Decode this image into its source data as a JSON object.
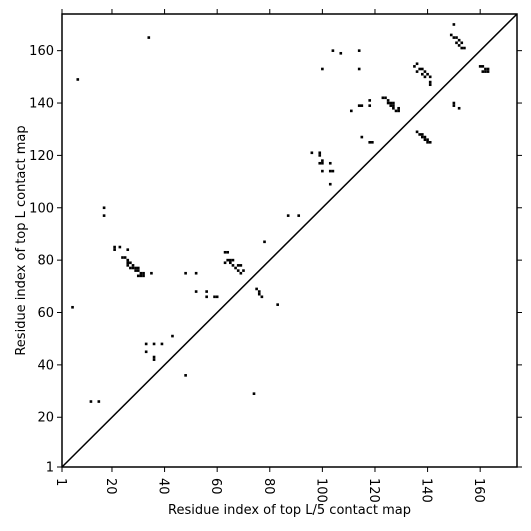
{
  "chart_data": {
    "type": "scatter",
    "title": "",
    "xlabel": "Residue index of top L/5 contact map",
    "ylabel": "Residue index of top L contact map",
    "xlim": [
      1,
      174
    ],
    "ylim": [
      1,
      174
    ],
    "xticks": [
      1,
      20,
      40,
      60,
      80,
      100,
      120,
      140,
      160
    ],
    "yticks": [
      1,
      20,
      40,
      60,
      80,
      100,
      120,
      140,
      160
    ],
    "grid": false,
    "legend": "none",
    "marker": "filled square",
    "marker_color": "#000000",
    "diagonal": {
      "from": [
        1,
        1
      ],
      "to": [
        174,
        174
      ],
      "color": "#000000"
    },
    "points": [
      [
        7,
        149
      ],
      [
        5,
        62
      ],
      [
        12,
        26
      ],
      [
        15,
        26
      ],
      [
        17,
        100
      ],
      [
        17,
        97
      ],
      [
        21,
        85
      ],
      [
        21,
        84
      ],
      [
        23,
        85
      ],
      [
        26,
        84
      ],
      [
        24,
        81
      ],
      [
        25,
        81
      ],
      [
        26,
        80
      ],
      [
        26,
        79
      ],
      [
        27,
        79
      ],
      [
        28,
        78
      ],
      [
        29,
        77
      ],
      [
        30,
        77
      ],
      [
        30,
        76
      ],
      [
        31,
        75
      ],
      [
        32,
        74
      ],
      [
        32,
        75
      ],
      [
        35,
        75
      ],
      [
        26,
        78
      ],
      [
        27,
        77
      ],
      [
        28,
        77
      ],
      [
        29,
        76
      ],
      [
        30,
        74
      ],
      [
        31,
        74
      ],
      [
        34,
        165
      ],
      [
        33,
        45
      ],
      [
        33,
        48
      ],
      [
        36,
        48
      ],
      [
        36,
        43
      ],
      [
        36,
        42
      ],
      [
        39,
        48
      ],
      [
        43,
        51
      ],
      [
        48,
        75
      ],
      [
        48,
        36
      ],
      [
        52,
        75
      ],
      [
        52,
        68
      ],
      [
        56,
        68
      ],
      [
        56,
        66
      ],
      [
        59,
        66
      ],
      [
        60,
        66
      ],
      [
        63,
        83
      ],
      [
        64,
        83
      ],
      [
        63,
        79
      ],
      [
        64,
        80
      ],
      [
        65,
        80
      ],
      [
        66,
        80
      ],
      [
        65,
        79
      ],
      [
        66,
        78
      ],
      [
        67,
        77
      ],
      [
        68,
        78
      ],
      [
        69,
        78
      ],
      [
        68,
        76
      ],
      [
        69,
        75
      ],
      [
        70,
        76
      ],
      [
        74,
        29
      ],
      [
        75,
        69
      ],
      [
        76,
        68
      ],
      [
        76,
        67
      ],
      [
        77,
        66
      ],
      [
        78,
        87
      ],
      [
        83,
        63
      ],
      [
        87,
        97
      ],
      [
        91,
        97
      ],
      [
        96,
        121
      ],
      [
        99,
        121
      ],
      [
        99,
        120
      ],
      [
        99,
        117
      ],
      [
        100,
        118
      ],
      [
        100,
        117
      ],
      [
        100,
        153
      ],
      [
        100,
        114
      ],
      [
        103,
        117
      ],
      [
        103,
        114
      ],
      [
        104,
        114
      ],
      [
        103,
        109
      ],
      [
        104,
        160
      ],
      [
        107,
        159
      ],
      [
        111,
        137
      ],
      [
        114,
        160
      ],
      [
        114,
        153
      ],
      [
        114,
        139
      ],
      [
        115,
        139
      ],
      [
        115,
        127
      ],
      [
        118,
        141
      ],
      [
        118,
        139
      ],
      [
        118,
        125
      ],
      [
        119,
        125
      ],
      [
        123,
        142
      ],
      [
        124,
        142
      ],
      [
        125,
        141
      ],
      [
        125,
        140
      ],
      [
        126,
        140
      ],
      [
        126,
        139
      ],
      [
        127,
        139
      ],
      [
        127,
        138
      ],
      [
        128,
        137
      ],
      [
        129,
        138
      ],
      [
        129,
        137
      ],
      [
        127,
        140
      ],
      [
        135,
        154
      ],
      [
        136,
        155
      ],
      [
        137,
        153
      ],
      [
        136,
        152
      ],
      [
        138,
        153
      ],
      [
        138,
        151
      ],
      [
        139,
        152
      ],
      [
        139,
        150
      ],
      [
        140,
        151
      ],
      [
        141,
        150
      ],
      [
        141,
        148
      ],
      [
        141,
        147
      ],
      [
        136,
        129
      ],
      [
        137,
        128
      ],
      [
        138,
        128
      ],
      [
        138,
        127
      ],
      [
        139,
        127
      ],
      [
        139,
        126
      ],
      [
        140,
        126
      ],
      [
        141,
        125
      ],
      [
        140,
        125
      ],
      [
        150,
        170
      ],
      [
        149,
        166
      ],
      [
        150,
        165
      ],
      [
        151,
        165
      ],
      [
        152,
        164
      ],
      [
        151,
        163
      ],
      [
        152,
        162
      ],
      [
        153,
        163
      ],
      [
        153,
        161
      ],
      [
        154,
        161
      ],
      [
        150,
        140
      ],
      [
        150,
        139
      ],
      [
        152,
        138
      ],
      [
        160,
        154
      ],
      [
        161,
        154
      ],
      [
        162,
        153
      ],
      [
        161,
        152
      ],
      [
        162,
        152
      ],
      [
        163,
        153
      ],
      [
        163,
        152
      ]
    ]
  }
}
